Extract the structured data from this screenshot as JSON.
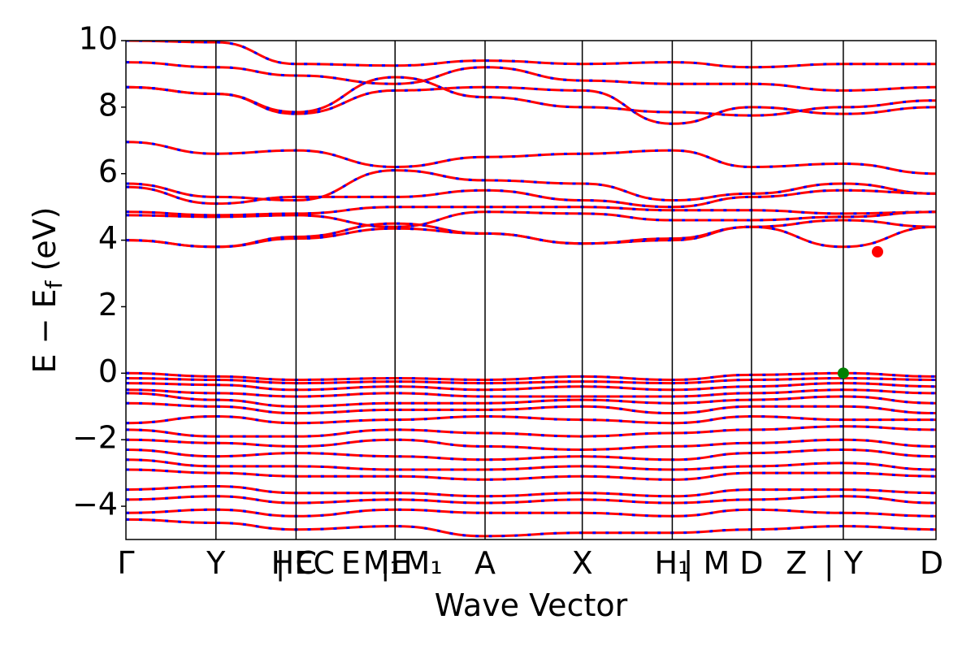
{
  "chart_data": {
    "type": "line",
    "title": "",
    "xlabel": "Wave Vector",
    "ylabel": {
      "main": "E − E",
      "subscript": "f",
      "unit": " (eV)"
    },
    "ylim": [
      -5,
      10
    ],
    "yticks": [
      10,
      8,
      6,
      4,
      2,
      0,
      -2,
      -4
    ],
    "ytick_labels": [
      "10",
      "8",
      "6",
      "4",
      "2",
      "0",
      "−2",
      "−4"
    ],
    "xlim": [
      0,
      9
    ],
    "kpath_ticks": [
      {
        "x": 0.0,
        "label": "Γ"
      },
      {
        "x": 1.0,
        "label": "Y"
      },
      {
        "x": 1.85,
        "label": "HE"
      },
      {
        "x": 1.89,
        "label": "| C"
      },
      {
        "x": 2.2,
        "label": "C"
      },
      {
        "x": 2.5,
        "label": "E"
      },
      {
        "x": 2.85,
        "label": "M₁"
      },
      {
        "x": 2.99,
        "label": "|E"
      },
      {
        "x": 3.3,
        "label": "M₁"
      },
      {
        "x": 3.99,
        "label": "A"
      },
      {
        "x": 5.07,
        "label": "X"
      },
      {
        "x": 6.07,
        "label": "H₁"
      },
      {
        "x": 6.45,
        "label": "| M"
      },
      {
        "x": 6.95,
        "label": "D"
      },
      {
        "x": 7.45,
        "label": "Z"
      },
      {
        "x": 7.97,
        "label": "| Y"
      },
      {
        "x": 8.95,
        "label": "D"
      }
    ],
    "segment_boundaries": [
      0,
      1.0,
      1.89,
      2.99,
      3.99,
      5.07,
      6.07,
      6.95,
      7.97,
      9.0
    ],
    "series": [
      {
        "color": "#ff0000",
        "style": "solid",
        "width": 3
      },
      {
        "color": "#0000ff",
        "style": "dotted",
        "width": 3
      }
    ],
    "bands": {
      "conduction": [
        [
          10.0,
          9.95,
          9.3,
          9.25,
          9.4,
          9.3,
          9.35,
          9.2,
          9.3,
          9.3
        ],
        [
          9.35,
          9.2,
          8.95,
          8.7,
          9.2,
          8.8,
          8.7,
          8.7,
          8.5,
          8.6
        ],
        [
          8.6,
          8.4,
          7.8,
          8.5,
          8.6,
          8.5,
          7.5,
          8.0,
          7.8,
          8.0
        ],
        [
          8.6,
          8.4,
          7.85,
          8.9,
          8.3,
          8.0,
          7.85,
          7.75,
          8.0,
          8.2
        ],
        [
          6.95,
          6.6,
          6.7,
          6.2,
          6.5,
          6.6,
          6.7,
          6.2,
          6.3,
          6.0
        ],
        [
          5.7,
          5.3,
          5.2,
          6.1,
          5.8,
          5.7,
          5.2,
          5.4,
          5.7,
          5.4
        ],
        [
          5.6,
          5.1,
          5.3,
          5.3,
          5.5,
          5.2,
          5.0,
          5.3,
          5.5,
          5.4
        ],
        [
          4.85,
          4.75,
          4.8,
          5.0,
          5.0,
          5.0,
          4.9,
          4.9,
          4.8,
          4.85
        ],
        [
          4.75,
          4.7,
          4.75,
          4.4,
          4.85,
          4.8,
          4.6,
          4.6,
          4.7,
          4.85
        ],
        [
          4.0,
          3.8,
          4.1,
          4.5,
          4.2,
          3.9,
          4.0,
          4.4,
          4.6,
          4.4
        ],
        [
          4.0,
          3.8,
          4.05,
          4.35,
          4.2,
          3.9,
          4.05,
          4.4,
          3.8,
          4.4
        ]
      ],
      "valence": [
        [
          0.0,
          -0.1,
          -0.2,
          -0.15,
          -0.2,
          -0.1,
          -0.2,
          -0.05,
          0.0,
          -0.1
        ],
        [
          -0.15,
          -0.2,
          -0.3,
          -0.25,
          -0.3,
          -0.25,
          -0.3,
          -0.2,
          -0.15,
          -0.2
        ],
        [
          -0.3,
          -0.35,
          -0.5,
          -0.4,
          -0.5,
          -0.4,
          -0.5,
          -0.4,
          -0.3,
          -0.4
        ],
        [
          -0.5,
          -0.6,
          -0.7,
          -0.6,
          -0.7,
          -0.7,
          -0.7,
          -0.6,
          -0.5,
          -0.6
        ],
        [
          -0.6,
          -0.8,
          -1.0,
          -0.9,
          -0.9,
          -0.8,
          -0.9,
          -0.8,
          -0.7,
          -0.9
        ],
        [
          -0.9,
          -1.0,
          -1.2,
          -1.1,
          -1.1,
          -1.0,
          -1.2,
          -1.0,
          -1.0,
          -1.2
        ],
        [
          -1.5,
          -1.3,
          -1.5,
          -1.4,
          -1.3,
          -1.4,
          -1.5,
          -1.3,
          -1.4,
          -1.4
        ],
        [
          -1.7,
          -1.9,
          -1.9,
          -1.7,
          -1.8,
          -1.9,
          -1.8,
          -1.7,
          -1.6,
          -1.7
        ],
        [
          -2.0,
          -2.1,
          -2.2,
          -2.0,
          -2.2,
          -2.3,
          -2.2,
          -2.1,
          -2.0,
          -2.2
        ],
        [
          -2.3,
          -2.5,
          -2.4,
          -2.5,
          -2.6,
          -2.5,
          -2.6,
          -2.4,
          -2.3,
          -2.5
        ],
        [
          -2.6,
          -2.8,
          -2.8,
          -2.9,
          -2.9,
          -2.8,
          -2.9,
          -2.8,
          -2.7,
          -2.9
        ],
        [
          -2.9,
          -3.0,
          -3.1,
          -3.1,
          -3.2,
          -3.1,
          -3.2,
          -3.0,
          -3.0,
          -3.1
        ],
        [
          -3.5,
          -3.4,
          -3.6,
          -3.6,
          -3.7,
          -3.6,
          -3.7,
          -3.5,
          -3.5,
          -3.6
        ],
        [
          -3.8,
          -3.7,
          -3.9,
          -3.8,
          -3.9,
          -3.8,
          -3.9,
          -3.8,
          -3.7,
          -3.9
        ],
        [
          -4.2,
          -4.1,
          -4.3,
          -4.1,
          -4.2,
          -4.2,
          -4.3,
          -4.1,
          -4.2,
          -4.3
        ],
        [
          -4.4,
          -4.5,
          -4.7,
          -4.6,
          -4.9,
          -4.8,
          -4.8,
          -4.7,
          -4.6,
          -4.7
        ]
      ]
    },
    "markers": [
      {
        "name": "cbm",
        "x": 8.35,
        "y": 3.65,
        "color": "#ff0000"
      },
      {
        "name": "vbm",
        "x": 7.97,
        "y": 0.0,
        "color": "#008000"
      }
    ],
    "grid": false,
    "legend": "none"
  }
}
